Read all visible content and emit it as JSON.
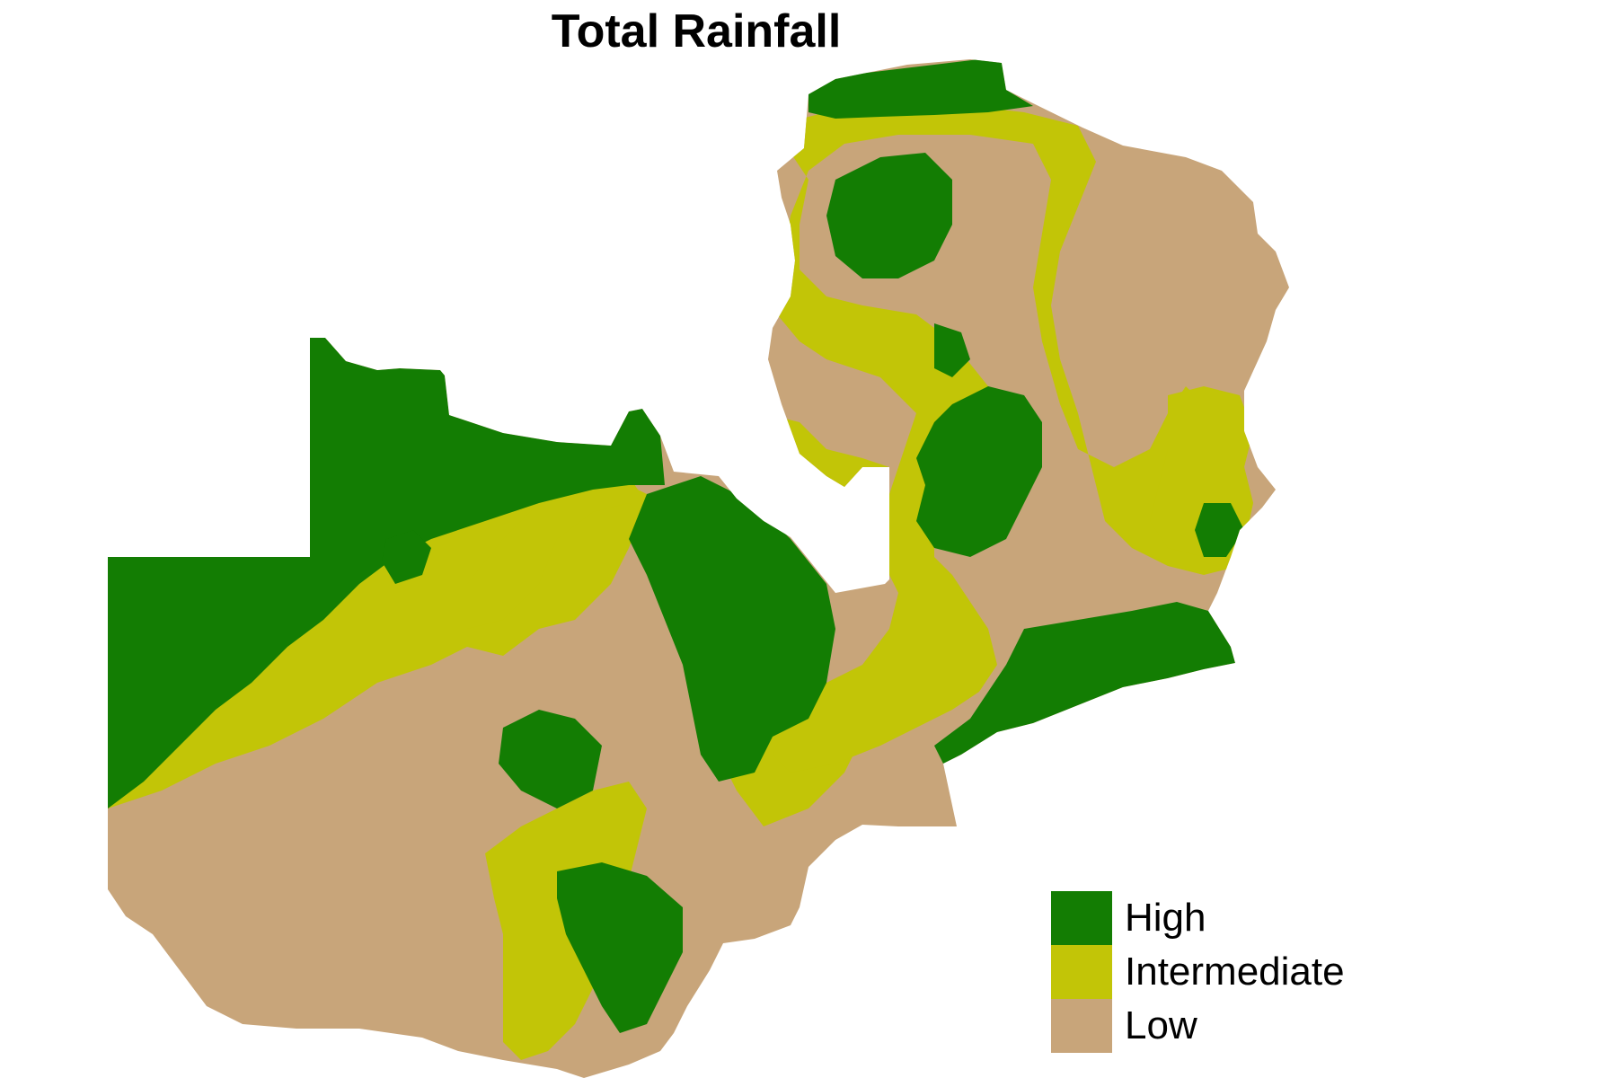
{
  "title": "Total Rainfall",
  "legend": {
    "entries": [
      {
        "label": "High",
        "color": "#137d03"
      },
      {
        "label": "Intermediate",
        "color": "#c2c507"
      },
      {
        "label": "Low",
        "color": "#c8a57a"
      }
    ]
  },
  "map": {
    "country_shape": "Zambia",
    "classes": [
      "High",
      "Intermediate",
      "Low"
    ]
  }
}
